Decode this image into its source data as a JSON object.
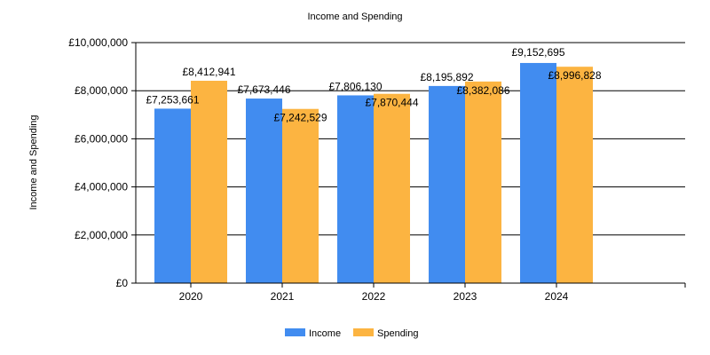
{
  "chart_data": {
    "type": "bar",
    "title": "Income and Spending",
    "xlabel": "",
    "ylabel": "Income and Spending",
    "categories": [
      "2020",
      "2021",
      "2022",
      "2023",
      "2024"
    ],
    "series": [
      {
        "name": "Income",
        "color": "#418CF0",
        "values": [
          7253661,
          7673446,
          7806130,
          8195892,
          9152695
        ],
        "labels": [
          "£7,253,661",
          "£7,673,446",
          "£7,806,130",
          "£8,195,892",
          "£9,152,695"
        ]
      },
      {
        "name": "Spending",
        "color": "#FCB441",
        "values": [
          8412941,
          7242529,
          7870444,
          8382086,
          8996828
        ],
        "labels": [
          "£8,412,941",
          "£7,242,529",
          "£7,870,444",
          "£8,382,086",
          "£8,996,828"
        ]
      }
    ],
    "ylim": [
      0,
      10000000
    ],
    "yticks": [
      0,
      2000000,
      4000000,
      6000000,
      8000000,
      10000000
    ],
    "ytick_labels": [
      "£0",
      "£2,000,000",
      "£4,000,000",
      "£6,000,000",
      "£8,000,000",
      "£10,000,000"
    ],
    "grid": true,
    "legend": "bottom-center"
  }
}
